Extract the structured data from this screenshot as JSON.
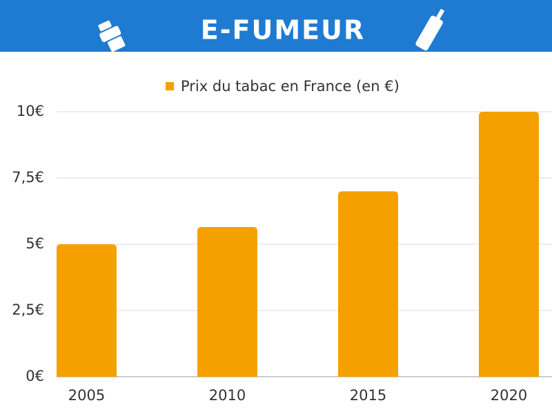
{
  "header": {
    "title": "E-FUMEUR"
  },
  "chart_data": {
    "type": "bar",
    "categories": [
      "2005",
      "2010",
      "2015",
      "2020"
    ],
    "series": [
      {
        "name": "Prix du tabac en France (en €)",
        "color": "#f4a100",
        "values": [
          5,
          5.65,
          7,
          10
        ]
      }
    ],
    "ylim": [
      0,
      10
    ],
    "yticks": [
      {
        "value": 0,
        "label": "0€"
      },
      {
        "value": 2.5,
        "label": "2,5€"
      },
      {
        "value": 5,
        "label": "5€"
      },
      {
        "value": 7.5,
        "label": "7,5€"
      },
      {
        "value": 10,
        "label": "10€"
      }
    ],
    "grid": true,
    "legend": "top"
  }
}
